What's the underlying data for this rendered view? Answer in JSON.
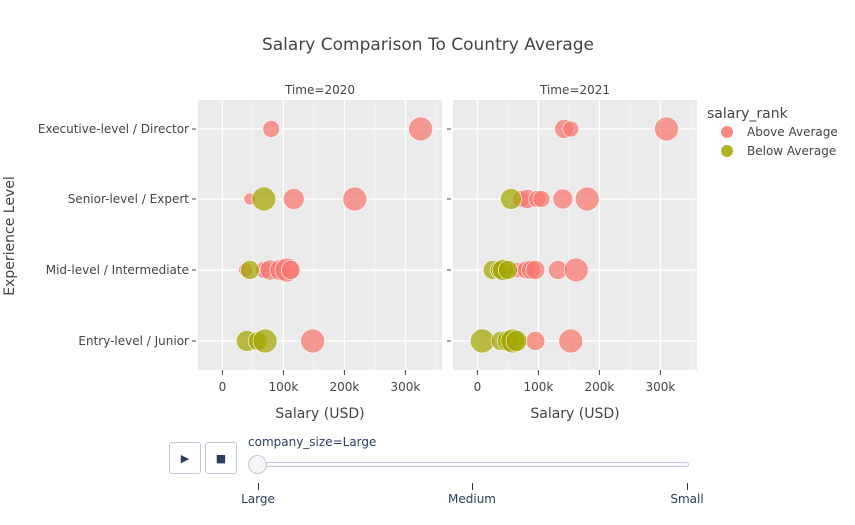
{
  "chart_data": {
    "type": "scatter",
    "title": "Salary Comparison To Country Average",
    "xlabel": "Salary (USD)",
    "ylabel": "Experience Level",
    "xlim": [
      -40000,
      360000
    ],
    "x_ticks": [
      0,
      100000,
      200000,
      300000
    ],
    "x_tick_labels": [
      "0",
      "100k",
      "200k",
      "300k"
    ],
    "categories": [
      "Entry-level / Junior",
      "Mid-level / Intermediate",
      "Senior-level / Expert",
      "Executive-level / Director"
    ],
    "grid": true,
    "legend_title": "salary_rank",
    "legend_position": "top-right",
    "colors": {
      "Above Average": "#F8766D",
      "Below Average": "#A3A500",
      "plot_bg": "#EBEBEB"
    },
    "panels": [
      {
        "title": "Time=2020",
        "series": [
          {
            "name": "Above Average",
            "points": [
              {
                "x": 80000,
                "y": "Executive-level / Director",
                "size": 17
              },
              {
                "x": 325000,
                "y": "Executive-level / Director",
                "size": 24
              },
              {
                "x": 45000,
                "y": "Senior-level / Expert",
                "size": 12
              },
              {
                "x": 117000,
                "y": "Senior-level / Expert",
                "size": 21
              },
              {
                "x": 217000,
                "y": "Senior-level / Expert",
                "size": 24
              },
              {
                "x": 38000,
                "y": "Mid-level / Intermediate",
                "size": 14
              },
              {
                "x": 68000,
                "y": "Mid-level / Intermediate",
                "size": 17
              },
              {
                "x": 78000,
                "y": "Mid-level / Intermediate",
                "size": 20
              },
              {
                "x": 95000,
                "y": "Mid-level / Intermediate",
                "size": 21
              },
              {
                "x": 106000,
                "y": "Mid-level / Intermediate",
                "size": 24
              },
              {
                "x": 112000,
                "y": "Mid-level / Intermediate",
                "size": 19
              },
              {
                "x": 148000,
                "y": "Entry-level / Junior",
                "size": 24
              }
            ]
          },
          {
            "name": "Below Average",
            "points": [
              {
                "x": 68000,
                "y": "Senior-level / Expert",
                "size": 24
              },
              {
                "x": 45000,
                "y": "Mid-level / Intermediate",
                "size": 19
              },
              {
                "x": 40000,
                "y": "Entry-level / Junior",
                "size": 21
              },
              {
                "x": 58000,
                "y": "Entry-level / Junior",
                "size": 19
              },
              {
                "x": 70000,
                "y": "Entry-level / Junior",
                "size": 24
              }
            ]
          }
        ]
      },
      {
        "title": "Time=2021",
        "series": [
          {
            "name": "Above Average",
            "points": [
              {
                "x": 142000,
                "y": "Executive-level / Director",
                "size": 19
              },
              {
                "x": 153000,
                "y": "Executive-level / Director",
                "size": 16
              },
              {
                "x": 310000,
                "y": "Executive-level / Director",
                "size": 24
              },
              {
                "x": 72000,
                "y": "Senior-level / Expert",
                "size": 17
              },
              {
                "x": 82000,
                "y": "Senior-level / Expert",
                "size": 19
              },
              {
                "x": 98000,
                "y": "Senior-level / Expert",
                "size": 17
              },
              {
                "x": 105000,
                "y": "Senior-level / Expert",
                "size": 17
              },
              {
                "x": 140000,
                "y": "Senior-level / Expert",
                "size": 20
              },
              {
                "x": 180000,
                "y": "Senior-level / Expert",
                "size": 24
              },
              {
                "x": 65000,
                "y": "Mid-level / Intermediate",
                "size": 15
              },
              {
                "x": 80000,
                "y": "Mid-level / Intermediate",
                "size": 18
              },
              {
                "x": 88000,
                "y": "Mid-level / Intermediate",
                "size": 19
              },
              {
                "x": 95000,
                "y": "Mid-level / Intermediate",
                "size": 19
              },
              {
                "x": 132000,
                "y": "Mid-level / Intermediate",
                "size": 19
              },
              {
                "x": 162000,
                "y": "Mid-level / Intermediate",
                "size": 24
              },
              {
                "x": 95000,
                "y": "Entry-level / Junior",
                "size": 19
              },
              {
                "x": 153000,
                "y": "Entry-level / Junior",
                "size": 24
              }
            ]
          },
          {
            "name": "Below Average",
            "points": [
              {
                "x": 55000,
                "y": "Senior-level / Expert",
                "size": 21
              },
              {
                "x": 25000,
                "y": "Mid-level / Intermediate",
                "size": 19
              },
              {
                "x": 35000,
                "y": "Mid-level / Intermediate",
                "size": 17
              },
              {
                "x": 42000,
                "y": "Mid-level / Intermediate",
                "size": 21
              },
              {
                "x": 50000,
                "y": "Mid-level / Intermediate",
                "size": 19
              },
              {
                "x": 8000,
                "y": "Entry-level / Junior",
                "size": 24
              },
              {
                "x": 38000,
                "y": "Entry-level / Junior",
                "size": 19
              },
              {
                "x": 50000,
                "y": "Entry-level / Junior",
                "size": 21
              },
              {
                "x": 58000,
                "y": "Entry-level / Junior",
                "size": 24
              },
              {
                "x": 64000,
                "y": "Entry-level / Junior",
                "size": 21
              }
            ]
          }
        ]
      }
    ]
  },
  "animation": {
    "play_icon": "▶",
    "stop_icon": "■",
    "slider_label": "company_size=Large",
    "steps": [
      "Large",
      "Medium",
      "Small"
    ],
    "current_step": 0
  }
}
